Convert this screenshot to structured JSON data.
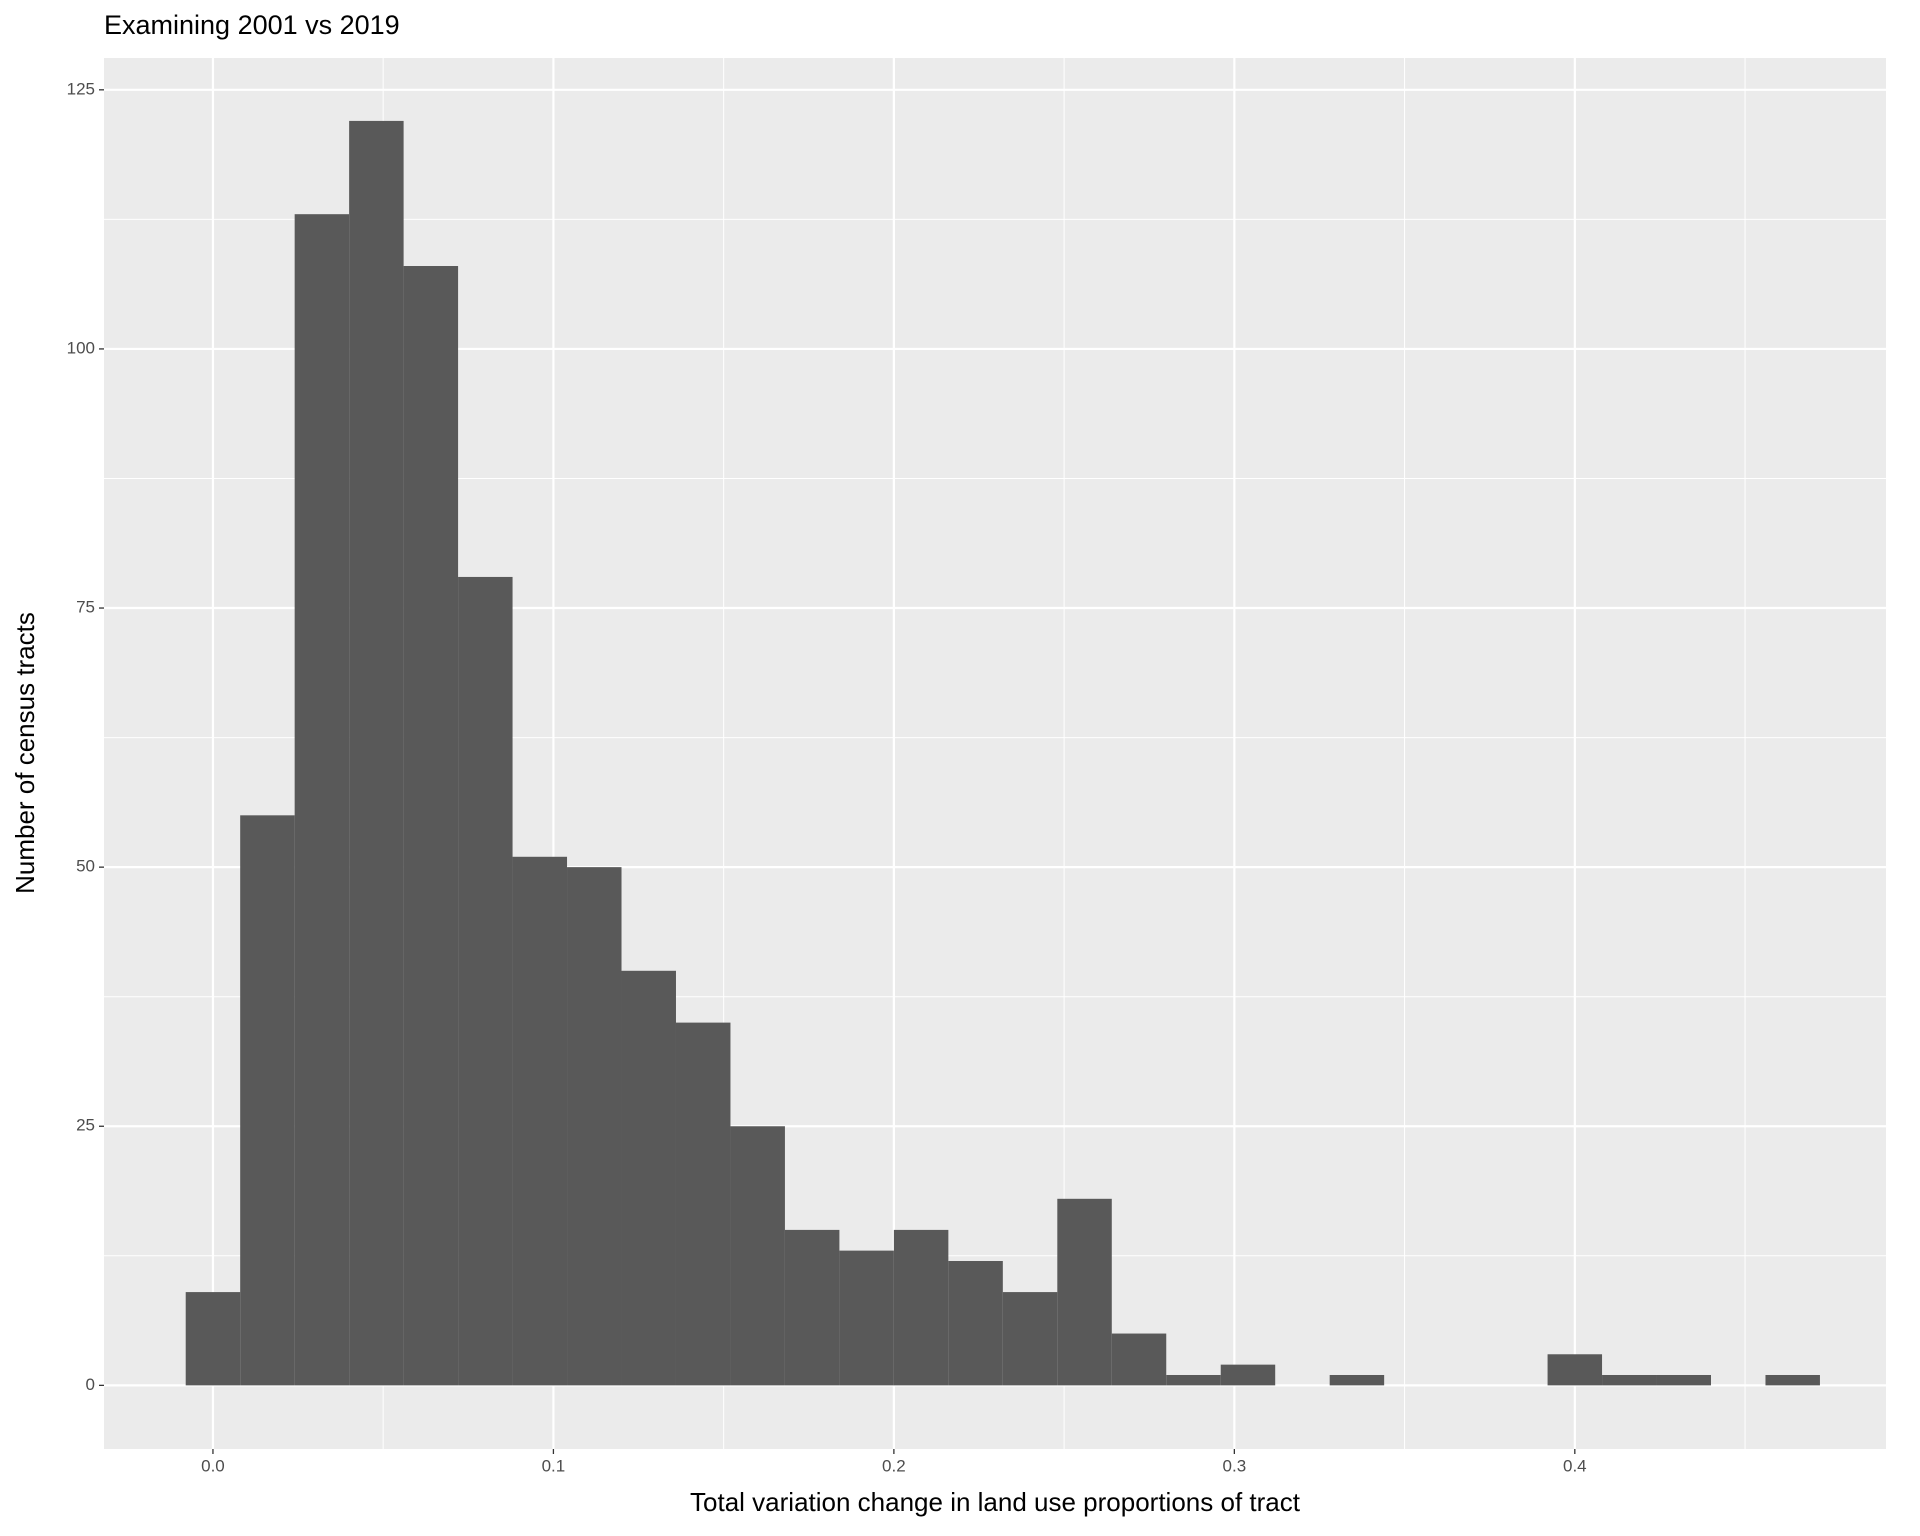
{
  "chart_data": {
    "type": "histogram",
    "title": "Examining 2001 vs 2019",
    "x_label": "Total variation change in land use proportions of tract",
    "y_label": "Number of census tracts",
    "bins": [
      -0.008,
      0.008,
      0.024,
      0.04,
      0.056,
      0.072,
      0.088,
      0.104,
      0.12,
      0.136,
      0.152,
      0.168,
      0.184,
      0.2,
      0.216,
      0.232,
      0.248,
      0.264,
      0.28,
      0.296,
      0.312,
      0.328,
      0.344,
      0.36,
      0.376,
      0.392,
      0.408,
      0.424,
      0.44,
      0.456,
      0.472
    ],
    "values": [
      9,
      55,
      113,
      122,
      108,
      78,
      51,
      50,
      40,
      35,
      25,
      15,
      13,
      15,
      12,
      9,
      18,
      5,
      1,
      2,
      0,
      1,
      0,
      0,
      0,
      3,
      1,
      1,
      0,
      1
    ],
    "color": "#595959",
    "xlim": [
      -0.032,
      0.4914
    ],
    "ylim": [
      -6.14,
      128.07
    ],
    "xticks": [
      {
        "value": 0,
        "label": "0.0"
      },
      0.1,
      0.2,
      0.3,
      0.4
    ],
    "yticks": [
      0,
      25,
      50,
      75,
      100,
      125
    ],
    "grid": true
  }
}
